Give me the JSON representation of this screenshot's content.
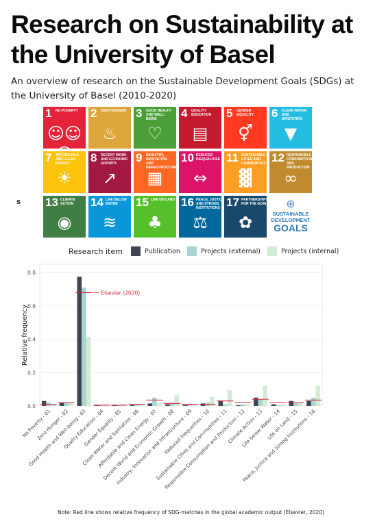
{
  "header": {
    "title": "Research on Sustainability at the University of Basel",
    "subtitle": "An overview of research on the Sustainable Development Goals (SDGs) at the University of Basel (2010-2020)"
  },
  "sdg_tiles": [
    {
      "num": "1",
      "label": "No Poverty",
      "color": "#e5243b",
      "icon": "family-icon",
      "glyph": "☺☺☺"
    },
    {
      "num": "2",
      "label": "Zero Hunger",
      "color": "#dda63a",
      "icon": "bowl-icon",
      "glyph": "♨"
    },
    {
      "num": "3",
      "label": "Good Health and Well-Being",
      "color": "#4c9f38",
      "icon": "heartbeat-icon",
      "glyph": "♡"
    },
    {
      "num": "4",
      "label": "Quality Education",
      "color": "#c5192d",
      "icon": "book-icon",
      "glyph": "▤"
    },
    {
      "num": "5",
      "label": "Gender Equality",
      "color": "#ff3a21",
      "icon": "gender-icon",
      "glyph": "⚥"
    },
    {
      "num": "6",
      "label": "Clean Water and Sanitation",
      "color": "#26bde2",
      "icon": "water-drop-icon",
      "glyph": "▼"
    },
    {
      "num": "7",
      "label": "Affordable and Clean Energy",
      "color": "#fcc30b",
      "icon": "sun-icon",
      "glyph": "☀"
    },
    {
      "num": "8",
      "label": "Decent Work and Economic Growth",
      "color": "#a21942",
      "icon": "growth-chart-icon",
      "glyph": "↗"
    },
    {
      "num": "9",
      "label": "Industry, Innovation and Infrastructure",
      "color": "#fd6925",
      "icon": "cubes-icon",
      "glyph": "▦"
    },
    {
      "num": "10",
      "label": "Reduced Inequalities",
      "color": "#dd1367",
      "icon": "equality-icon",
      "glyph": "⇔"
    },
    {
      "num": "11",
      "label": "Sustainable Cities and Communities",
      "color": "#fd9d24",
      "icon": "city-icon",
      "glyph": "▓"
    },
    {
      "num": "12",
      "label": "Responsible Consumption and Production",
      "color": "#bf8b2e",
      "icon": "infinity-icon",
      "glyph": "∞"
    },
    {
      "num": "13",
      "label": "Climate Action",
      "color": "#3f7e44",
      "icon": "eye-globe-icon",
      "glyph": "◉"
    },
    {
      "num": "14",
      "label": "Life Below Water",
      "color": "#0a97d9",
      "icon": "fish-icon",
      "glyph": "≋"
    },
    {
      "num": "15",
      "label": "Life on Land",
      "color": "#56c02b",
      "icon": "tree-icon",
      "glyph": "♣"
    },
    {
      "num": "16",
      "label": "Peace, Justice and Strong Institutions",
      "color": "#00689d",
      "icon": "dove-icon",
      "glyph": "⚖"
    },
    {
      "num": "17",
      "label": "Partnerships for the Goals",
      "color": "#19486a",
      "icon": "flower-ring-icon",
      "glyph": "✿"
    }
  ],
  "sdg_logo": {
    "line1": "SUSTAINABLE",
    "line2": "DEVELOPMENT",
    "line3": "GOALS",
    "icon": "un-emblem-icon",
    "glyph": "⊕"
  },
  "stray_mark": "s",
  "legend": {
    "title": "Research item",
    "items": [
      {
        "label": "Publication",
        "color": "#3f4652"
      },
      {
        "label": "Projects (external)",
        "color": "#a8d4d4"
      },
      {
        "label": "Projects (internal)",
        "color": "#d2ebd5"
      }
    ]
  },
  "note": "Note: Red line shows relative frequency of SDG-matches in the global academic output (Elsevier, 2020)",
  "chart_data": {
    "type": "bar",
    "ylabel": "Relative frequency",
    "ylim": [
      0,
      0.85
    ],
    "yticks": [
      "0.0",
      "0.2",
      "0.4",
      "0.6",
      "0.8"
    ],
    "grid": true,
    "legend_position": "top",
    "categories": [
      "No Poverty - 01",
      "Zero Hunger - 02",
      "Good Health and Well-being - 03",
      "Quality Education - 04",
      "Gender Equality - 05",
      "Clean Water and Sanitation - 06",
      "Affordable and Clean Energy - 07",
      "Decent World and Economic Growth - 08",
      "Industry, Innovation and Infrastructure - 09",
      "Reduced Inequalities - 10",
      "Sustainable Cities and Communities - 11",
      "Responsible Consumption and Production - 12",
      "Climate Action - 13",
      "Life below Water - 14",
      "Life on Land - 15",
      "Peace, Justice and Strong Institutions - 16"
    ],
    "series": [
      {
        "name": "Publication",
        "color": "#3f4652",
        "values": [
          0.03,
          0.02,
          0.775,
          0.005,
          0.005,
          0.005,
          0.015,
          0.01,
          0.005,
          0.015,
          0.03,
          0.005,
          0.05,
          0.01,
          0.03,
          0.03
        ]
      },
      {
        "name": "Projects (external)",
        "color": "#a8d4d4",
        "values": [
          0.02,
          0.02,
          0.71,
          0.005,
          0.005,
          0.005,
          0.05,
          0.02,
          0.01,
          0.02,
          0.01,
          0.01,
          0.04,
          0.005,
          0.02,
          0.05
        ]
      },
      {
        "name": "Projects (internal)",
        "color": "#d2ebd5",
        "values": [
          0.01,
          0.02,
          0.415,
          0.005,
          0.01,
          0.01,
          0.02,
          0.065,
          0.005,
          0.055,
          0.095,
          0.01,
          0.12,
          0.01,
          0.02,
          0.12
        ]
      }
    ],
    "reference_line": {
      "name": "Elsevier (2020)",
      "color": "#d7263d",
      "values": [
        0.01,
        0.02,
        0.68,
        0.005,
        0.005,
        0.01,
        0.035,
        0.015,
        0.01,
        0.01,
        0.03,
        0.02,
        0.04,
        0.02,
        0.02,
        0.035
      ]
    }
  }
}
